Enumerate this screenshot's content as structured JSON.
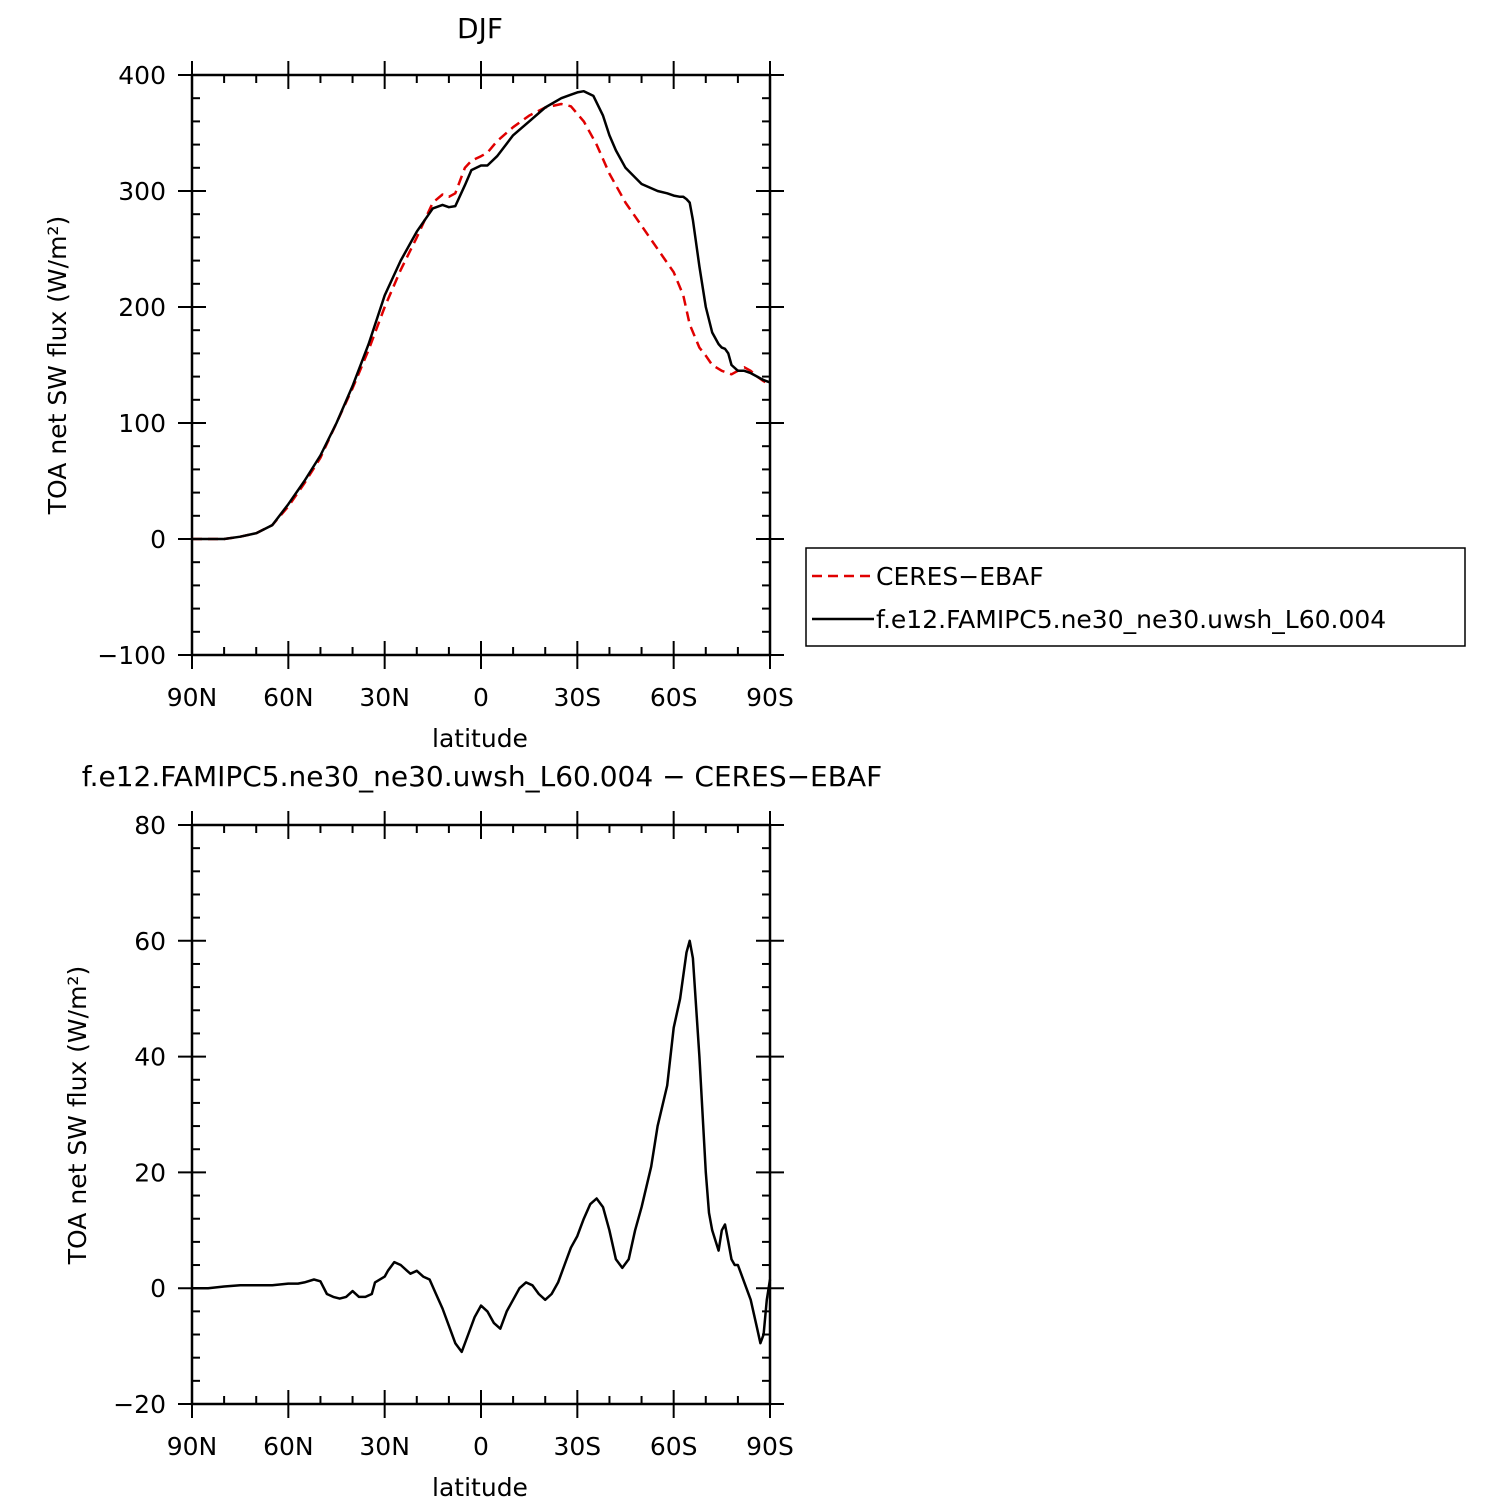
{
  "chart_data": [
    {
      "type": "line",
      "title": "DJF",
      "xlabel": "latitude",
      "ylabel": "TOA net SW flux (W/m²)",
      "xlim": [
        90,
        -90
      ],
      "ylim": [
        -100,
        400
      ],
      "x_ticks": [
        "90N",
        "60N",
        "30N",
        "0",
        "30S",
        "60S",
        "90S"
      ],
      "y_ticks": [
        "−100",
        "0",
        "100",
        "200",
        "300",
        "400"
      ],
      "legend_position": "right",
      "series": [
        {
          "name": "CERES−EBAF",
          "color": "#e00000",
          "style": "dashed",
          "x": [
            90,
            85,
            80,
            75,
            70,
            65,
            60,
            55,
            50,
            45,
            40,
            35,
            30,
            25,
            20,
            15,
            12,
            10,
            8,
            5,
            3,
            0,
            -2,
            -5,
            -10,
            -15,
            -20,
            -25,
            -28,
            -32,
            -36,
            -40,
            -45,
            -50,
            -55,
            -60,
            -63,
            -65,
            -68,
            -70,
            -72,
            -75,
            -78,
            -80,
            -82,
            -84,
            -86,
            -88,
            -90
          ],
          "y": [
            0,
            0,
            0,
            2,
            5,
            12,
            28,
            48,
            70,
            100,
            130,
            163,
            200,
            232,
            260,
            290,
            297,
            295,
            298,
            320,
            326,
            330,
            333,
            343,
            355,
            365,
            372,
            375,
            373,
            360,
            340,
            315,
            290,
            270,
            250,
            230,
            210,
            185,
            165,
            158,
            150,
            145,
            142,
            145,
            148,
            145,
            140,
            136,
            133
          ]
        },
        {
          "name": "f.e12.FAMIPC5.ne30_ne30.uwsh_L60.004",
          "color": "#000000",
          "style": "solid",
          "x": [
            90,
            85,
            80,
            75,
            70,
            65,
            60,
            55,
            50,
            45,
            40,
            35,
            30,
            25,
            20,
            15,
            12,
            10,
            8,
            5,
            3,
            0,
            -2,
            -5,
            -10,
            -15,
            -20,
            -25,
            -28,
            -30,
            -32,
            -35,
            -38,
            -40,
            -42,
            -45,
            -50,
            -55,
            -58,
            -60,
            -62,
            -63,
            -64,
            -65,
            -66,
            -68,
            -70,
            -72,
            -74,
            -75,
            -76,
            -77,
            -78,
            -80,
            -82,
            -84,
            -86,
            -88,
            -90
          ],
          "y": [
            0,
            0,
            0,
            2,
            5,
            12,
            30,
            50,
            72,
            100,
            132,
            168,
            210,
            240,
            265,
            285,
            288,
            286,
            287,
            305,
            318,
            322,
            322,
            330,
            348,
            360,
            372,
            380,
            383,
            385,
            386,
            382,
            365,
            348,
            335,
            320,
            306,
            300,
            298,
            296,
            295,
            295,
            293,
            290,
            275,
            235,
            200,
            178,
            168,
            165,
            164,
            160,
            150,
            145,
            145,
            143,
            140,
            137,
            135
          ]
        }
      ]
    },
    {
      "type": "line",
      "title": "f.e12.FAMIPC5.ne30_ne30.uwsh_L60.004 − CERES−EBAF",
      "xlabel": "latitude",
      "ylabel": "TOA net SW flux (W/m²)",
      "xlim": [
        90,
        -90
      ],
      "ylim": [
        -20,
        80
      ],
      "x_ticks": [
        "90N",
        "60N",
        "30N",
        "0",
        "30S",
        "60S",
        "90S"
      ],
      "y_ticks": [
        "−20",
        "0",
        "20",
        "40",
        "60",
        "80"
      ],
      "series": [
        {
          "color": "#000000",
          "style": "solid",
          "x": [
            90,
            85,
            80,
            75,
            70,
            65,
            60,
            57,
            55,
            52,
            50,
            48,
            46,
            44,
            42,
            40,
            38,
            36,
            34,
            33,
            30,
            29,
            27,
            25,
            23,
            22,
            20,
            18,
            16,
            14,
            12,
            10,
            8,
            6,
            4,
            2,
            0,
            -2,
            -4,
            -6,
            -8,
            -10,
            -12,
            -14,
            -16,
            -18,
            -20,
            -22,
            -24,
            -26,
            -28,
            -30,
            -31,
            -32,
            -34,
            -36,
            -38,
            -40,
            -42,
            -44,
            -46,
            -48,
            -50,
            -53,
            -55,
            -58,
            -60,
            -62,
            -64,
            -65,
            -66,
            -68,
            -70,
            -71,
            -72,
            -74,
            -75,
            -76,
            -77,
            -78,
            -79,
            -80,
            -82,
            -84,
            -86,
            -87,
            -88,
            -89,
            -90
          ],
          "y": [
            0,
            0,
            0.3,
            0.5,
            0.5,
            0.5,
            0.8,
            0.8,
            1,
            1.5,
            1.2,
            -1,
            -1.5,
            -1.8,
            -1.5,
            -0.5,
            -1.5,
            -1.5,
            -1,
            1,
            2,
            3,
            4.5,
            4,
            3,
            2.5,
            3,
            2,
            1.5,
            -1,
            -3.5,
            -6.5,
            -9.5,
            -11,
            -8,
            -5,
            -3,
            -4,
            -6,
            -7,
            -4,
            -2,
            0,
            1,
            0.5,
            -1,
            -2,
            -1,
            1,
            4,
            7,
            9,
            10.5,
            12,
            14.5,
            15.5,
            14,
            10,
            5,
            3.5,
            5,
            10,
            14,
            21,
            28,
            35,
            45,
            50,
            58,
            60,
            57,
            40,
            20,
            13,
            10,
            6.5,
            10,
            11,
            8,
            5,
            4,
            4,
            1,
            -2,
            -7,
            -9.5,
            -8,
            -2,
            1.5
          ]
        }
      ]
    }
  ]
}
